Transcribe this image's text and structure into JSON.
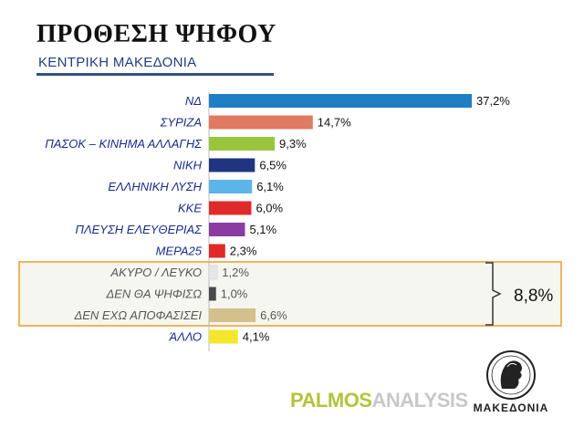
{
  "header": {
    "title": "ΠΡΟΘΕΣΗ ΨΗΦΟΥ",
    "subtitle": "ΚΕΝΤΡΙΚΗ ΜΑΚΕΔΟΝΙΑ"
  },
  "chart_data": {
    "type": "bar",
    "orientation": "horizontal",
    "title": "ΠΡΟΘΕΣΗ ΨΗΦΟΥ",
    "subtitle": "ΚΕΝΤΡΙΚΗ ΜΑΚΕΔΟΝΙΑ",
    "xlabel": "",
    "ylabel": "",
    "grid": false,
    "categories": [
      "ΝΔ",
      "ΣΥΡΙΖΑ",
      "ΠΑΣΟΚ – ΚΙΝΗΜΑ ΑΛΛΑΓΗΣ",
      "ΝΙΚΗ",
      "ΕΛΛΗΝΙΚΗ ΛΥΣΗ",
      "ΚΚΕ",
      "ΠΛΕΥΣΗ ΕΛΕΥΘΕΡΙΑΣ",
      "ΜΕΡΑ25",
      "ΑΚΥΡΟ / ΛΕΥΚΟ",
      "ΔΕΝ ΘΑ ΨΗΦΙΣΩ",
      "ΔΕΝ ΕΧΩ ΑΠΟΦΑΣΙΣΕΙ",
      "ΆΛΛΟ"
    ],
    "values": [
      37.2,
      14.7,
      9.3,
      6.5,
      6.1,
      6.0,
      5.1,
      2.3,
      1.2,
      1.0,
      6.6,
      4.1
    ],
    "value_labels": [
      "37,2%",
      "14,7%",
      "9,3%",
      "6,5%",
      "6,1%",
      "6,0%",
      "5,1%",
      "2,3%",
      "1,2%",
      "1,0%",
      "6,6%",
      "4,1%"
    ],
    "colors": [
      "#1f7fc4",
      "#e07a62",
      "#9ac43b",
      "#1f3580",
      "#5bb5e8",
      "#e02a2a",
      "#8a3ca0",
      "#e02a2a",
      "#e6e6e6",
      "#4a4a4a",
      "#d4c08a",
      "#f4e62e"
    ],
    "xlim": [
      0,
      40
    ],
    "group": {
      "categories": [
        "ΑΚΥΡΟ / ΛΕΥΚΟ",
        "ΔΕΝ ΘΑ ΨΗΦΙΣΩ",
        "ΔΕΝ ΕΧΩ ΑΠΟΦΑΣΙΣΕΙ"
      ],
      "total": 8.8,
      "total_label": "8,8%"
    }
  },
  "footer": {
    "logo_part1": "PALMOS",
    "logo_part2": "ANALYSIS",
    "brand": "ΜΑΚΕΔΟΝΙΑ"
  }
}
